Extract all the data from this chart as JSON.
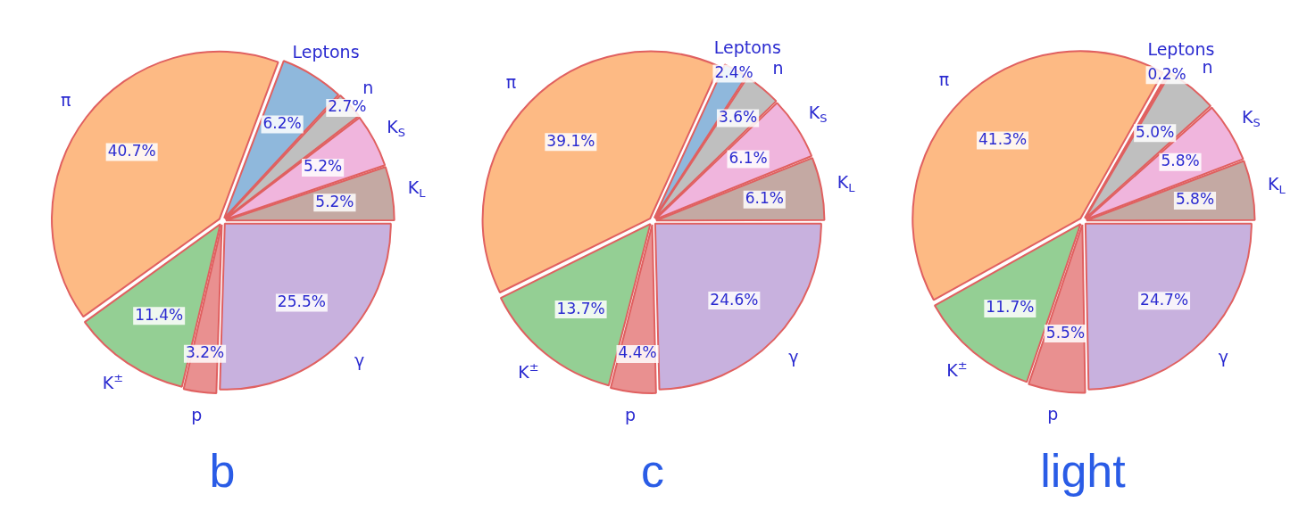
{
  "chart_data": [
    {
      "type": "pie",
      "title": "b",
      "categories": [
        "γ",
        "p",
        "K$^{±}$",
        "π",
        "Leptons",
        "n",
        "K$_{S}$",
        "K$_{L}$"
      ],
      "values": [
        25.5,
        3.2,
        11.4,
        40.7,
        6.2,
        2.7,
        5.2,
        5.2
      ],
      "value_labels": [
        "25.5%",
        "3.2%",
        "11.4%",
        "40.7%",
        "6.2%",
        "2.7%",
        "5.2%",
        "5.2%"
      ],
      "colors": [
        "#c8b1de",
        "#e99090",
        "#94cf94",
        "#fdba84",
        "#8fb8dc",
        "#bfbfbf",
        "#f0b5dd",
        "#c4a9a3"
      ],
      "legend": false
    },
    {
      "type": "pie",
      "title": "c",
      "categories": [
        "γ",
        "p",
        "K$^{±}$",
        "π",
        "Leptons",
        "n",
        "K$_{S}$",
        "K$_{L}$"
      ],
      "values": [
        24.6,
        4.4,
        13.7,
        39.1,
        2.4,
        3.6,
        6.1,
        6.1
      ],
      "value_labels": [
        "24.6%",
        "4.4%",
        "13.7%",
        "39.1%",
        "2.4%",
        "3.6%",
        "6.1%",
        "6.1%"
      ],
      "colors": [
        "#c8b1de",
        "#e99090",
        "#94cf94",
        "#fdba84",
        "#8fb8dc",
        "#bfbfbf",
        "#f0b5dd",
        "#c4a9a3"
      ],
      "legend": false
    },
    {
      "type": "pie",
      "title": "light",
      "categories": [
        "γ",
        "p",
        "K$^{±}$",
        "π",
        "Leptons",
        "n",
        "K$_{S}$",
        "K$_{L}$"
      ],
      "values": [
        24.7,
        5.5,
        11.7,
        41.3,
        0.2,
        5.0,
        5.8,
        5.8
      ],
      "value_labels": [
        "24.7%",
        "5.5%",
        "11.7%",
        "41.3%",
        "0.2%",
        "5.0%",
        "5.8%",
        "5.8%"
      ],
      "colors": [
        "#c8b1de",
        "#e99090",
        "#94cf94",
        "#fdba84",
        "#8fb8dc",
        "#bfbfbf",
        "#f0b5dd",
        "#c4a9a3"
      ],
      "legend": false
    }
  ]
}
